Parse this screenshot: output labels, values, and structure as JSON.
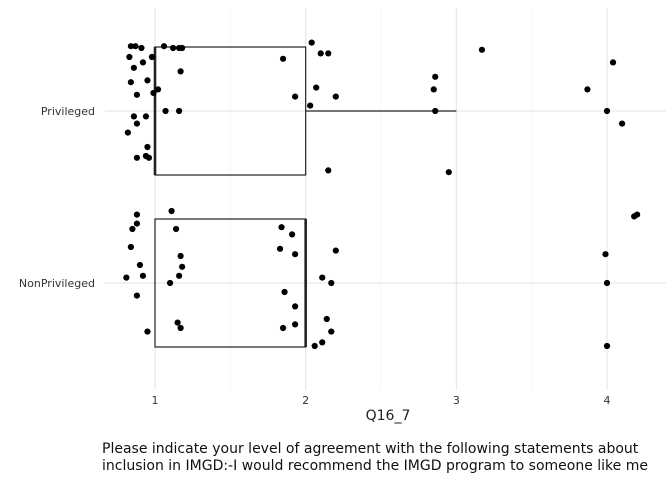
{
  "chart_data": {
    "type": "boxplot-jitter",
    "xlabel": "Q16_7",
    "ylabel": "",
    "xlim": [
      0.6,
      4.35
    ],
    "xticks": [
      1,
      2,
      3,
      4
    ],
    "grid": true,
    "categories": [
      "Privileged",
      "NonPrivileged"
    ],
    "boxes": [
      {
        "category": "Privileged",
        "min": 1,
        "q1": 1,
        "median": 1,
        "q3": 2,
        "max": 3
      },
      {
        "category": "NonPrivileged",
        "min": 1,
        "q1": 1,
        "median": 2,
        "q3": 2,
        "max": 2
      }
    ],
    "points": [
      {
        "category": "Privileged",
        "values": [
          {
            "x": 0.84,
            "y": 0.36
          },
          {
            "x": 0.87,
            "y": 0.36
          },
          {
            "x": 0.91,
            "y": 0.35
          },
          {
            "x": 0.83,
            "y": 0.3
          },
          {
            "x": 0.86,
            "y": 0.24
          },
          {
            "x": 0.84,
            "y": 0.16
          },
          {
            "x": 0.88,
            "y": 0.09
          },
          {
            "x": 0.95,
            "y": 0.17
          },
          {
            "x": 0.99,
            "y": 0.1
          },
          {
            "x": 0.98,
            "y": 0.3
          },
          {
            "x": 0.92,
            "y": 0.27
          },
          {
            "x": 0.88,
            "y": -0.07
          },
          {
            "x": 0.86,
            "y": -0.03
          },
          {
            "x": 0.82,
            "y": -0.12
          },
          {
            "x": 0.88,
            "y": -0.26
          },
          {
            "x": 0.94,
            "y": -0.03
          },
          {
            "x": 0.95,
            "y": -0.2
          },
          {
            "x": 0.96,
            "y": -0.26
          },
          {
            "x": 0.94,
            "y": -0.25
          },
          {
            "x": 1.06,
            "y": 0.36
          },
          {
            "x": 1.12,
            "y": 0.35
          },
          {
            "x": 1.16,
            "y": 0.35
          },
          {
            "x": 1.18,
            "y": 0.35
          },
          {
            "x": 1.02,
            "y": 0.12
          },
          {
            "x": 1.07,
            "y": 0.0
          },
          {
            "x": 1.16,
            "y": 0.0
          },
          {
            "x": 1.17,
            "y": 0.22
          },
          {
            "x": 1.85,
            "y": 0.29
          },
          {
            "x": 1.93,
            "y": 0.08
          },
          {
            "x": 2.04,
            "y": 0.38
          },
          {
            "x": 2.1,
            "y": 0.32
          },
          {
            "x": 2.15,
            "y": 0.32
          },
          {
            "x": 2.07,
            "y": 0.13
          },
          {
            "x": 2.2,
            "y": 0.08
          },
          {
            "x": 2.03,
            "y": 0.03
          },
          {
            "x": 2.15,
            "y": -0.33
          },
          {
            "x": 2.86,
            "y": 0.19
          },
          {
            "x": 2.85,
            "y": 0.12
          },
          {
            "x": 2.86,
            "y": 0.0
          },
          {
            "x": 2.95,
            "y": -0.34
          },
          {
            "x": 3.17,
            "y": 0.34
          },
          {
            "x": 3.87,
            "y": 0.12
          },
          {
            "x": 4.04,
            "y": 0.27
          },
          {
            "x": 4.0,
            "y": 0.0
          },
          {
            "x": 4.1,
            "y": -0.07
          }
        ]
      },
      {
        "category": "NonPrivileged",
        "values": [
          {
            "x": 0.88,
            "y": 0.38
          },
          {
            "x": 0.88,
            "y": 0.33
          },
          {
            "x": 0.85,
            "y": 0.3
          },
          {
            "x": 0.84,
            "y": 0.2
          },
          {
            "x": 0.9,
            "y": 0.1
          },
          {
            "x": 0.81,
            "y": 0.03
          },
          {
            "x": 0.92,
            "y": 0.04
          },
          {
            "x": 0.88,
            "y": -0.07
          },
          {
            "x": 0.95,
            "y": -0.27
          },
          {
            "x": 1.11,
            "y": 0.4
          },
          {
            "x": 1.14,
            "y": 0.3
          },
          {
            "x": 1.17,
            "y": 0.15
          },
          {
            "x": 1.18,
            "y": 0.09
          },
          {
            "x": 1.16,
            "y": 0.04
          },
          {
            "x": 1.1,
            "y": 0.0
          },
          {
            "x": 1.15,
            "y": -0.22
          },
          {
            "x": 1.17,
            "y": -0.25
          },
          {
            "x": 1.84,
            "y": 0.31
          },
          {
            "x": 1.91,
            "y": 0.27
          },
          {
            "x": 1.83,
            "y": 0.19
          },
          {
            "x": 1.93,
            "y": 0.16
          },
          {
            "x": 1.86,
            "y": -0.05
          },
          {
            "x": 1.93,
            "y": -0.13
          },
          {
            "x": 1.93,
            "y": -0.23
          },
          {
            "x": 1.85,
            "y": -0.25
          },
          {
            "x": 2.2,
            "y": 0.18
          },
          {
            "x": 2.11,
            "y": 0.03
          },
          {
            "x": 2.17,
            "y": 0.0
          },
          {
            "x": 2.14,
            "y": -0.2
          },
          {
            "x": 2.17,
            "y": -0.27
          },
          {
            "x": 2.11,
            "y": -0.33
          },
          {
            "x": 2.06,
            "y": -0.35
          },
          {
            "x": 4.18,
            "y": 0.37
          },
          {
            "x": 4.2,
            "y": 0.38
          },
          {
            "x": 3.99,
            "y": 0.16
          },
          {
            "x": 4.0,
            "y": 0.0
          },
          {
            "x": 4.0,
            "y": -0.35
          }
        ]
      }
    ]
  },
  "caption": {
    "line1": "Please indicate your level of agreement with the following statements about",
    "line2": "inclusion in IMGD:-I would recommend the IMGD program to someone like me"
  }
}
